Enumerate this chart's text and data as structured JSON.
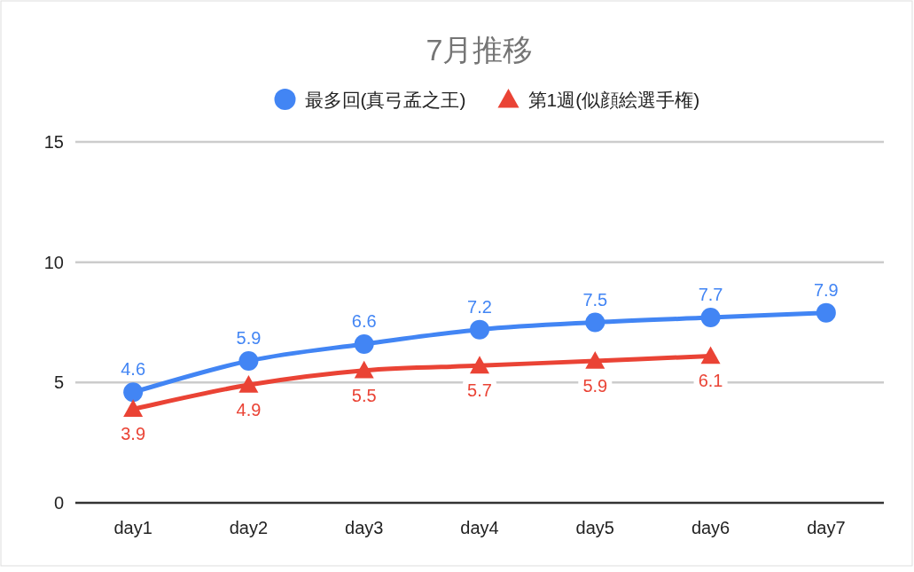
{
  "chart_data": {
    "type": "line",
    "title": "7月推移",
    "categories": [
      "day1",
      "day2",
      "day3",
      "day4",
      "day5",
      "day6",
      "day7"
    ],
    "series": [
      {
        "name": "最多回(真弓孟之王)",
        "color": "#4285f4",
        "marker": "circle",
        "values": [
          4.6,
          5.9,
          6.6,
          7.2,
          7.5,
          7.7,
          7.9
        ]
      },
      {
        "name": "第1週(似顔絵選手権)",
        "color": "#ea4335",
        "marker": "triangle",
        "values": [
          3.9,
          4.9,
          5.5,
          5.7,
          5.9,
          6.1,
          null
        ]
      }
    ],
    "ylim": [
      0,
      15
    ],
    "yticks": [
      0,
      5,
      10,
      15
    ],
    "grid": "y",
    "legend": "top",
    "data_labels": true
  }
}
